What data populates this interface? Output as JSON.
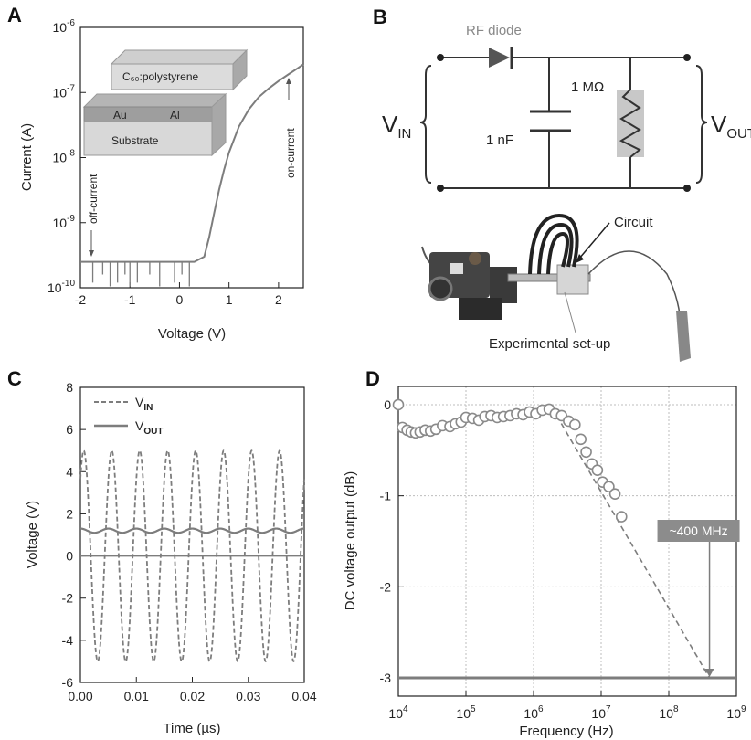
{
  "figure": {
    "panels": [
      {
        "letter": "A"
      },
      {
        "letter": "B"
      },
      {
        "letter": "C"
      },
      {
        "letter": "D"
      }
    ]
  },
  "panel_a": {
    "inset": {
      "top_layer": "C₆₀:polystyrene",
      "left_electrode": "Au",
      "right_electrode": "Al",
      "base": "Substrate"
    },
    "annotations": {
      "off": "off-current",
      "on": "on-current"
    }
  },
  "panel_b": {
    "diode_label": "RF diode",
    "capacitor_label": "1 nF",
    "resistor_label": "1 MΩ",
    "vin_main": "V",
    "vin_sub": "IN",
    "vout_main": "V",
    "vout_sub": "OUT",
    "circuit_label": "Circuit",
    "setup_label": "Experimental set-up"
  },
  "colors": {
    "curve": "#7d7d7d",
    "axis": "#222222",
    "grid": "#bdbdbd",
    "marker_fill": "#ffffff",
    "marker_edge": "#8a8a8a",
    "callout_bg": "#8c8c8c"
  },
  "chart_data": [
    {
      "panel": "A",
      "type": "line",
      "xlabel": "Voltage (V)",
      "ylabel": "Current (A)",
      "xlim": [
        -2,
        2.5
      ],
      "ylim": [
        1e-10,
        1e-06
      ],
      "yscale": "log",
      "xticks": [
        "-2",
        "-1",
        "0",
        "1",
        "2"
      ],
      "yticks": [
        {
          "m": "10",
          "e": "-10"
        },
        {
          "m": "10",
          "e": "-9"
        },
        {
          "m": "10",
          "e": "-8"
        },
        {
          "m": "10",
          "e": "-7"
        },
        {
          "m": "10",
          "e": "-6"
        }
      ],
      "series": [
        {
          "values": [
            [
              -2.0,
              2.5e-10
            ],
            [
              -1.5,
              2.5e-10
            ],
            [
              -1.0,
              2.5e-10
            ],
            [
              -0.5,
              2.5e-10
            ],
            [
              0.0,
              2.5e-10
            ],
            [
              0.3,
              2.5e-10
            ],
            [
              0.5,
              3e-10
            ],
            [
              0.6,
              6e-10
            ],
            [
              0.7,
              1.4e-09
            ],
            [
              0.8,
              3.2e-09
            ],
            [
              0.9,
              6.5e-09
            ],
            [
              1.0,
              1.2e-08
            ],
            [
              1.2,
              3e-08
            ],
            [
              1.4,
              5.5e-08
            ],
            [
              1.6,
              8.5e-08
            ],
            [
              1.8,
              1.15e-07
            ],
            [
              2.0,
              1.5e-07
            ],
            [
              2.2,
              1.9e-07
            ],
            [
              2.4,
              2.4e-07
            ],
            [
              2.5,
              2.7e-07
            ]
          ]
        }
      ]
    },
    {
      "panel": "C",
      "type": "line",
      "xlabel": "Time (µs)",
      "ylabel": "Voltage (V)",
      "xlim": [
        0,
        0.04
      ],
      "ylim": [
        -6,
        8
      ],
      "xticks": [
        "0.00",
        "0.01",
        "0.02",
        "0.03",
        "0.04"
      ],
      "yticks": [
        "-6",
        "-4",
        "-2",
        "0",
        "2",
        "4",
        "6",
        "8"
      ],
      "series": [
        {
          "name_main": "V",
          "name_sub": "IN",
          "style": "dashed",
          "amplitude": 5,
          "period_us": 0.005,
          "offset": 0
        },
        {
          "name_main": "V",
          "name_sub": "OUT",
          "style": "solid",
          "value": 1.2,
          "ripple": 0.1
        }
      ]
    },
    {
      "panel": "D",
      "type": "scatter",
      "xlabel": "Frequency (Hz)",
      "ylabel": "DC voltage output (dB)",
      "xscale": "log",
      "xlim": [
        10000.0,
        1000000000.0
      ],
      "ylim": [
        -3.2,
        0.2
      ],
      "grid": true,
      "xticks": [
        {
          "m": "10",
          "e": "4"
        },
        {
          "m": "10",
          "e": "5"
        },
        {
          "m": "10",
          "e": "6"
        },
        {
          "m": "10",
          "e": "7"
        },
        {
          "m": "10",
          "e": "8"
        },
        {
          "m": "10",
          "e": "9"
        }
      ],
      "yticks": [
        "0",
        "-1",
        "-2",
        "-3"
      ],
      "points": [
        [
          10000,
          0.0
        ],
        [
          11500,
          -0.25
        ],
        [
          13500,
          -0.28
        ],
        [
          15500,
          -0.3
        ],
        [
          18000,
          -0.31
        ],
        [
          21000,
          -0.3
        ],
        [
          25000,
          -0.28
        ],
        [
          30000,
          -0.29
        ],
        [
          36000,
          -0.27
        ],
        [
          45000,
          -0.23
        ],
        [
          58000,
          -0.24
        ],
        [
          70000,
          -0.21
        ],
        [
          85000,
          -0.19
        ],
        [
          100000,
          -0.14
        ],
        [
          125000,
          -0.15
        ],
        [
          155000,
          -0.17
        ],
        [
          190000,
          -0.13
        ],
        [
          235000,
          -0.12
        ],
        [
          290000,
          -0.14
        ],
        [
          360000,
          -0.13
        ],
        [
          450000,
          -0.12
        ],
        [
          560000,
          -0.1
        ],
        [
          700000,
          -0.11
        ],
        [
          870000,
          -0.08
        ],
        [
          1080000,
          -0.1
        ],
        [
          1350000,
          -0.06
        ],
        [
          1700000,
          -0.05
        ],
        [
          2100000,
          -0.1
        ],
        [
          2600000,
          -0.12
        ],
        [
          3300000,
          -0.18
        ],
        [
          4100000,
          -0.22
        ],
        [
          5000000,
          -0.38
        ],
        [
          6000000,
          -0.52
        ],
        [
          7300000,
          -0.65
        ],
        [
          8800000,
          -0.72
        ],
        [
          10500000,
          -0.85
        ],
        [
          13000000,
          -0.9
        ],
        [
          16000000,
          -0.98
        ],
        [
          20000000,
          -1.23
        ]
      ],
      "trend_line": [
        [
          2200000,
          -0.12
        ],
        [
          400000000,
          -3.0
        ]
      ],
      "reference_line": -3.0,
      "callout": "~400 MHz",
      "callout_x": 400000000
    }
  ]
}
